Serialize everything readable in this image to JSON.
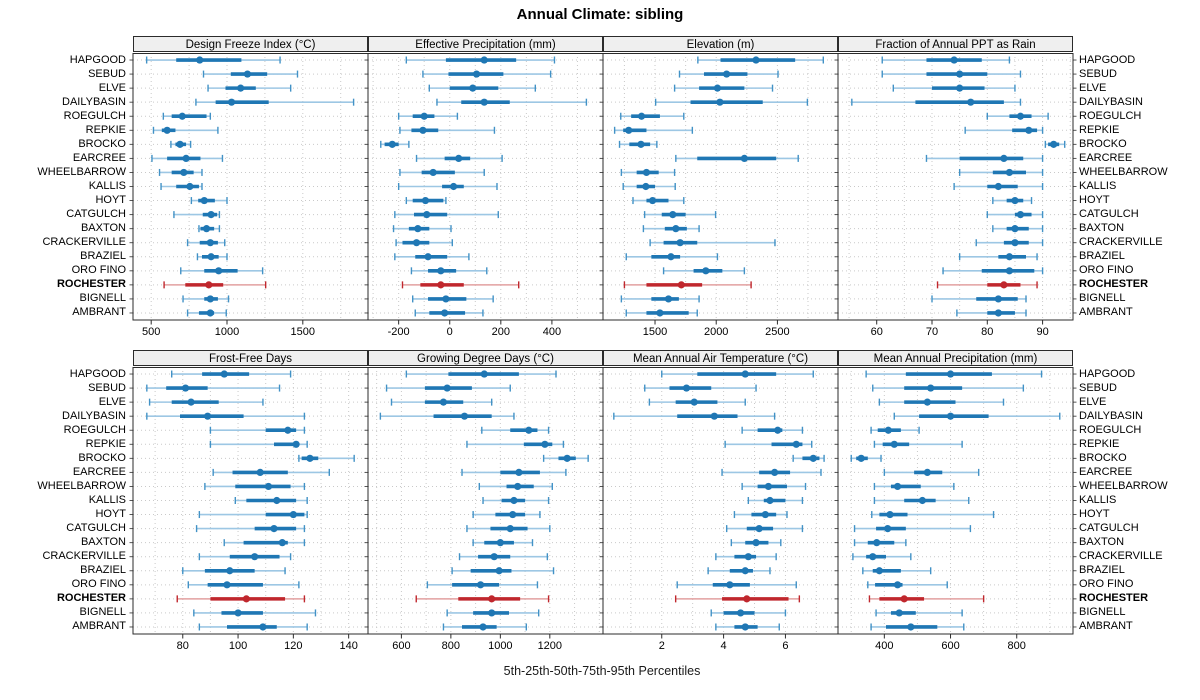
{
  "title": "Annual Climate: sibling",
  "xlabel": "5th-25th-50th-75th-95th Percentiles",
  "percentile_labels": [
    "5th",
    "25th",
    "50th",
    "75th",
    "95th"
  ],
  "stations": [
    "HAPGOOD",
    "SEBUD",
    "ELVE",
    "DAILYBASIN",
    "ROEGULCH",
    "REPKIE",
    "BROCKO",
    "EARCREE",
    "WHEELBARROW",
    "KALLIS",
    "HOYT",
    "CATGULCH",
    "BAXTON",
    "CRACKERVILLE",
    "BRAZIEL",
    "ORO FINO",
    "ROCHESTER",
    "BIGNELL",
    "AMBRANT"
  ],
  "highlight_station": "ROCHESTER",
  "colors": {
    "blue_main": "#1f77b4",
    "blue_whisker": "#9dc7e4",
    "blue_cap": "#4292c6",
    "red_main": "#c0272d",
    "red_whisker": "#e2a1a1",
    "red_cap": "#c0272d",
    "grid": "#c9c9c9",
    "header_bg": "#efefef",
    "border": "#2b2b2b"
  },
  "chart_data": [
    {
      "type": "interval",
      "title": "Design Freeze Index (°C)",
      "grid_row": 0,
      "grid_col": 0,
      "xlim": [
        380,
        1930
      ],
      "ticks": [
        500,
        1000,
        1500
      ],
      "grid_step": 250,
      "series": {
        "HAPGOOD": [
          470,
          665,
          820,
          1095,
          1350
        ],
        "SEBUD": [
          845,
          1025,
          1135,
          1265,
          1465
        ],
        "ELVE": [
          875,
          990,
          1090,
          1190,
          1420
        ],
        "DAILYBASIN": [
          795,
          925,
          1030,
          1275,
          1835
        ],
        "ROEGULCH": [
          580,
          635,
          705,
          865,
          890
        ],
        "REPKIE": [
          515,
          570,
          605,
          660,
          940
        ],
        "BROCKO": [
          630,
          660,
          690,
          730,
          760
        ],
        "EARCREE": [
          505,
          605,
          730,
          825,
          970
        ],
        "WHEELBARROW": [
          555,
          635,
          715,
          780,
          835
        ],
        "KALLIS": [
          565,
          665,
          755,
          815,
          835
        ],
        "HOYT": [
          765,
          810,
          850,
          920,
          1000
        ],
        "CATGULCH": [
          650,
          840,
          895,
          935,
          950
        ],
        "BAXTON": [
          815,
          825,
          865,
          915,
          950
        ],
        "CRACKERVILLE": [
          740,
          820,
          890,
          940,
          985
        ],
        "BRAZIEL": [
          805,
          835,
          895,
          945,
          1000
        ],
        "ORO FINO": [
          695,
          850,
          945,
          1070,
          1235
        ],
        "ROCHESTER": [
          585,
          725,
          880,
          975,
          1255
        ],
        "BIGNELL": [
          710,
          850,
          890,
          940,
          1010
        ],
        "AMBRANT": [
          740,
          815,
          890,
          915,
          995
        ]
      }
    },
    {
      "type": "interval",
      "title": "Effective Precipitation (mm)",
      "grid_row": 0,
      "grid_col": 1,
      "xlim": [
        -320,
        600
      ],
      "ticks": [
        -200,
        0,
        200,
        400
      ],
      "grid_step": 100,
      "series": {
        "HAPGOOD": [
          -170,
          -15,
          135,
          260,
          410
        ],
        "SEBUD": [
          -105,
          -5,
          105,
          210,
          395
        ],
        "ELVE": [
          -80,
          0,
          90,
          190,
          335
        ],
        "DAILYBASIN": [
          -50,
          45,
          135,
          235,
          535
        ],
        "ROEGULCH": [
          -200,
          -145,
          -100,
          -60,
          30
        ],
        "REPKIE": [
          -195,
          -150,
          -105,
          -45,
          175
        ],
        "BROCKO": [
          -270,
          -255,
          -225,
          -200,
          -160
        ],
        "EARCREE": [
          -130,
          -20,
          35,
          80,
          205
        ],
        "WHEELBARROW": [
          -195,
          -110,
          -65,
          20,
          135
        ],
        "KALLIS": [
          -200,
          -30,
          15,
          55,
          185
        ],
        "HOYT": [
          -170,
          -145,
          -95,
          -25,
          -15
        ],
        "CATGULCH": [
          -215,
          -140,
          -90,
          -10,
          190
        ],
        "BAXTON": [
          -220,
          -160,
          -125,
          -80,
          5
        ],
        "CRACKERVILLE": [
          -210,
          -185,
          -130,
          -80,
          10
        ],
        "BRAZIEL": [
          -215,
          -135,
          -85,
          -10,
          75
        ],
        "ORO FINO": [
          -150,
          -85,
          -35,
          25,
          145
        ],
        "ROCHESTER": [
          -185,
          -115,
          -35,
          55,
          270
        ],
        "BIGNELL": [
          -145,
          -85,
          -15,
          65,
          170
        ],
        "AMBRANT": [
          -135,
          -80,
          -20,
          60,
          130
        ]
      }
    },
    {
      "type": "interval",
      "title": "Elevation (m)",
      "grid_row": 0,
      "grid_col": 2,
      "xlim": [
        1075,
        2995
      ],
      "ticks": [
        1500,
        2000,
        2500
      ],
      "grid_step": 250,
      "series": {
        "HAPGOOD": [
          1850,
          2035,
          2325,
          2645,
          2875
        ],
        "SEBUD": [
          1700,
          1900,
          2085,
          2255,
          2505
        ],
        "ELVE": [
          1660,
          1860,
          2010,
          2230,
          2460
        ],
        "DAILYBASIN": [
          1505,
          1790,
          2030,
          2380,
          2745
        ],
        "ROEGULCH": [
          1220,
          1305,
          1390,
          1540,
          1735
        ],
        "REPKIE": [
          1170,
          1240,
          1285,
          1430,
          1805
        ],
        "BROCKO": [
          1210,
          1290,
          1385,
          1460,
          1515
        ],
        "EARCREE": [
          1670,
          1845,
          2230,
          2490,
          2670
        ],
        "WHEELBARROW": [
          1225,
          1350,
          1430,
          1530,
          1660
        ],
        "KALLIS": [
          1240,
          1350,
          1425,
          1500,
          1665
        ],
        "HOYT": [
          1320,
          1430,
          1480,
          1610,
          1735
        ],
        "CATGULCH": [
          1415,
          1555,
          1645,
          1750,
          1995
        ],
        "BAXTON": [
          1405,
          1580,
          1670,
          1760,
          1860
        ],
        "CRACKERVILLE": [
          1460,
          1570,
          1705,
          1845,
          2480
        ],
        "BRAZIEL": [
          1265,
          1470,
          1630,
          1705,
          2010
        ],
        "ORO FINO": [
          1570,
          1815,
          1915,
          2050,
          2230
        ],
        "ROCHESTER": [
          1250,
          1430,
          1715,
          1885,
          2285
        ],
        "BIGNELL": [
          1225,
          1470,
          1610,
          1695,
          1860
        ],
        "AMBRANT": [
          1265,
          1430,
          1540,
          1775,
          1845
        ]
      }
    },
    {
      "type": "interval",
      "title": "Fraction of Annual PPT as Rain",
      "grid_row": 0,
      "grid_col": 3,
      "xlim": [
        53,
        95.5
      ],
      "ticks": [
        60,
        70,
        80,
        90
      ],
      "grid_step": 5,
      "series": {
        "HAPGOOD": [
          61,
          69,
          74,
          79,
          84
        ],
        "SEBUD": [
          61,
          69,
          75,
          80,
          86
        ],
        "ELVE": [
          63,
          70,
          75,
          79.5,
          85
        ],
        "DAILYBASIN": [
          55.5,
          67,
          77,
          83,
          86
        ],
        "ROEGULCH": [
          80,
          84,
          86,
          88,
          91
        ],
        "REPKIE": [
          76,
          84.5,
          87.5,
          89,
          90
        ],
        "BROCKO": [
          90.5,
          91,
          92,
          93,
          94
        ],
        "EARCREE": [
          69,
          75,
          83,
          86.5,
          90
        ],
        "WHEELBARROW": [
          75,
          81,
          84,
          87,
          90
        ],
        "KALLIS": [
          74,
          80,
          82,
          85.5,
          90
        ],
        "HOYT": [
          81,
          83.5,
          85,
          86.5,
          88
        ],
        "CATGULCH": [
          80,
          85,
          86,
          88,
          90
        ],
        "BAXTON": [
          81,
          83.5,
          85,
          87.5,
          90
        ],
        "CRACKERVILLE": [
          78,
          83,
          85,
          87.5,
          90
        ],
        "BRAZIEL": [
          75,
          82,
          84,
          87,
          89
        ],
        "ORO FINO": [
          72,
          79,
          84,
          88.5,
          90
        ],
        "ROCHESTER": [
          71,
          80,
          83,
          86,
          89
        ],
        "BIGNELL": [
          70,
          78,
          82,
          85.5,
          87
        ],
        "AMBRANT": [
          74.5,
          80,
          82,
          85,
          87
        ]
      }
    },
    {
      "type": "interval",
      "title": "Frost-Free Days",
      "grid_row": 1,
      "grid_col": 0,
      "xlim": [
        62,
        147
      ],
      "ticks": [
        80,
        100,
        120,
        140
      ],
      "grid_step": 10,
      "series": {
        "HAPGOOD": [
          76,
          87,
          95,
          104,
          119
        ],
        "SEBUD": [
          67,
          74,
          81,
          89,
          115
        ],
        "ELVE": [
          68,
          76,
          83,
          93,
          109
        ],
        "DAILYBASIN": [
          67,
          79,
          89,
          102,
          124
        ],
        "ROEGULCH": [
          90,
          110,
          118,
          121,
          124
        ],
        "REPKIE": [
          90,
          113,
          121,
          122,
          125
        ],
        "BROCKO": [
          122,
          123,
          126,
          129,
          142
        ],
        "EARCREE": [
          91,
          98,
          108,
          118,
          133
        ],
        "WHEELBARROW": [
          88,
          99,
          111,
          119,
          124
        ],
        "KALLIS": [
          99,
          103,
          114,
          121,
          125
        ],
        "HOYT": [
          86,
          110,
          120,
          124,
          125
        ],
        "CATGULCH": [
          85,
          106,
          113,
          121,
          124
        ],
        "BAXTON": [
          95,
          102,
          116,
          118,
          124
        ],
        "CRACKERVILLE": [
          86,
          97,
          106,
          115,
          119
        ],
        "BRAZIEL": [
          80,
          88,
          97,
          106,
          117
        ],
        "ORO FINO": [
          82,
          89,
          96,
          109,
          122
        ],
        "ROCHESTER": [
          78,
          90,
          103,
          117,
          124
        ],
        "BIGNELL": [
          84,
          94,
          100,
          109,
          128
        ],
        "AMBRANT": [
          86,
          96,
          109,
          114,
          125
        ]
      }
    },
    {
      "type": "interval",
      "title": "Growing Degree Days (°C)",
      "grid_row": 1,
      "grid_col": 1,
      "xlim": [
        465,
        1415
      ],
      "ticks": [
        600,
        800,
        1000,
        1200
      ],
      "grid_step": 100,
      "series": {
        "HAPGOOD": [
          620,
          790,
          935,
          1075,
          1225
        ],
        "SEBUD": [
          540,
          695,
          785,
          885,
          1040
        ],
        "ELVE": [
          560,
          695,
          770,
          850,
          965
        ],
        "DAILYBASIN": [
          515,
          730,
          855,
          965,
          1055
        ],
        "ROEGULCH": [
          925,
          1040,
          1115,
          1150,
          1195
        ],
        "REPKIE": [
          865,
          1095,
          1180,
          1210,
          1255
        ],
        "BROCKO": [
          1175,
          1235,
          1270,
          1305,
          1355
        ],
        "EARCREE": [
          845,
          1000,
          1075,
          1160,
          1265
        ],
        "WHEELBARROW": [
          915,
          1025,
          1070,
          1135,
          1210
        ],
        "KALLIS": [
          930,
          1005,
          1055,
          1100,
          1195
        ],
        "HOYT": [
          890,
          980,
          1050,
          1100,
          1160
        ],
        "CATGULCH": [
          865,
          960,
          1040,
          1110,
          1200
        ],
        "BAXTON": [
          890,
          935,
          1000,
          1055,
          1130
        ],
        "CRACKERVILLE": [
          835,
          910,
          975,
          1040,
          1190
        ],
        "BRAZIEL": [
          805,
          880,
          995,
          1045,
          1215
        ],
        "ORO FINO": [
          705,
          805,
          920,
          995,
          1150
        ],
        "ROCHESTER": [
          660,
          830,
          965,
          1080,
          1195
        ],
        "BIGNELL": [
          785,
          890,
          965,
          1035,
          1155
        ],
        "AMBRANT": [
          770,
          845,
          930,
          985,
          1105
        ]
      }
    },
    {
      "type": "interval",
      "title": "Mean Annual Air Temperature (°C)",
      "grid_row": 1,
      "grid_col": 2,
      "xlim": [
        0.1,
        7.7
      ],
      "ticks": [
        2,
        4,
        6
      ],
      "grid_step": 1,
      "series": {
        "HAPGOOD": [
          2.0,
          3.15,
          4.7,
          5.7,
          6.9
        ],
        "SEBUD": [
          1.45,
          2.25,
          2.8,
          3.6,
          5.05
        ],
        "ELVE": [
          1.6,
          2.45,
          3.05,
          3.8,
          4.7
        ],
        "DAILYBASIN": [
          0.45,
          2.5,
          3.7,
          4.45,
          5.65
        ],
        "ROEGULCH": [
          4.6,
          5.1,
          5.75,
          5.9,
          6.55
        ],
        "REPKIE": [
          4.05,
          5.55,
          6.35,
          6.55,
          6.85
        ],
        "BROCKO": [
          6.25,
          6.55,
          6.9,
          7.1,
          7.25
        ],
        "EARCREE": [
          3.95,
          5.15,
          5.65,
          6.15,
          7.15
        ],
        "WHEELBARROW": [
          4.6,
          5.1,
          5.45,
          6.05,
          6.65
        ],
        "KALLIS": [
          4.8,
          5.3,
          5.5,
          6.0,
          6.55
        ],
        "HOYT": [
          4.35,
          4.9,
          5.35,
          5.7,
          6.05
        ],
        "CATGULCH": [
          4.1,
          4.75,
          5.15,
          5.6,
          6.55
        ],
        "BAXTON": [
          4.25,
          4.7,
          5.05,
          5.45,
          5.85
        ],
        "CRACKERVILLE": [
          3.75,
          4.35,
          4.8,
          5.05,
          5.7
        ],
        "BRAZIEL": [
          3.5,
          4.2,
          4.7,
          4.95,
          5.5
        ],
        "ORO FINO": [
          2.5,
          3.65,
          4.2,
          4.85,
          6.35
        ],
        "ROCHESTER": [
          2.45,
          3.95,
          4.75,
          6.1,
          6.45
        ],
        "BIGNELL": [
          3.6,
          4.0,
          4.55,
          5.0,
          6.0
        ],
        "AMBRANT": [
          3.75,
          4.35,
          4.7,
          5.1,
          5.8
        ]
      }
    },
    {
      "type": "interval",
      "title": "Mean Annual Precipitation (mm)",
      "grid_row": 1,
      "grid_col": 3,
      "xlim": [
        260,
        970
      ],
      "ticks": [
        400,
        600,
        800
      ],
      "grid_step": 100,
      "series": {
        "HAPGOOD": [
          345,
          465,
          600,
          725,
          875
        ],
        "SEBUD": [
          365,
          460,
          540,
          635,
          820
        ],
        "ELVE": [
          385,
          460,
          530,
          615,
          760
        ],
        "DAILYBASIN": [
          430,
          505,
          600,
          715,
          930
        ],
        "ROEGULCH": [
          360,
          380,
          412,
          450,
          505
        ],
        "REPKIE": [
          370,
          395,
          430,
          475,
          635
        ],
        "BROCKO": [
          300,
          315,
          330,
          350,
          390
        ],
        "EARCREE": [
          400,
          490,
          530,
          575,
          685
        ],
        "WHEELBARROW": [
          370,
          420,
          440,
          510,
          610
        ],
        "KALLIS": [
          370,
          460,
          515,
          555,
          655
        ],
        "HOYT": [
          362,
          385,
          417,
          470,
          730
        ],
        "CATGULCH": [
          310,
          375,
          410,
          465,
          660
        ],
        "BAXTON": [
          310,
          350,
          377,
          430,
          465
        ],
        "CRACKERVILLE": [
          305,
          345,
          365,
          405,
          480
        ],
        "BRAZIEL": [
          335,
          365,
          385,
          450,
          540
        ],
        "ORO FINO": [
          350,
          372,
          440,
          455,
          590
        ],
        "ROCHESTER": [
          355,
          385,
          460,
          520,
          700
        ],
        "BIGNELL": [
          375,
          420,
          445,
          495,
          635
        ],
        "AMBRANT": [
          360,
          405,
          480,
          560,
          640
        ]
      }
    }
  ]
}
